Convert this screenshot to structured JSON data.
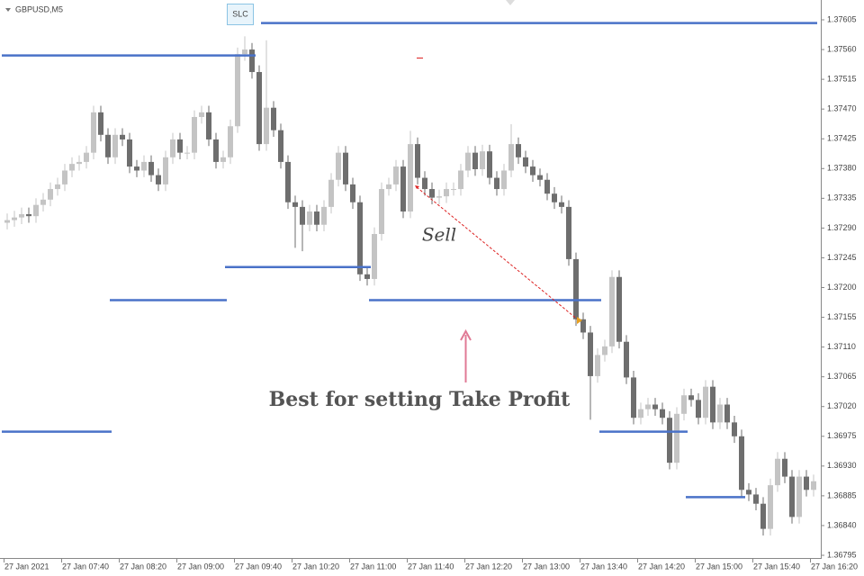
{
  "chart_data": {
    "type": "candlestick",
    "symbol": "GBPUSD,M5",
    "button": "SLC",
    "sell_label": "Sell",
    "note": "Best for setting Take Profit",
    "bull_color": "#c4c4c4",
    "bear_color": "#6e6e6e",
    "level_color": "#4a72c8",
    "categories": [
      "27 Jan 2021",
      null,
      null,
      null,
      null,
      null,
      null,
      null,
      "27 Jan 07:40",
      null,
      null,
      null,
      null,
      null,
      null,
      null,
      "27 Jan 08:20",
      null,
      null,
      null,
      null,
      null,
      null,
      null,
      "27 Jan 09:00",
      null,
      null,
      null,
      null,
      null,
      null,
      null,
      "27 Jan 09:40",
      null,
      null,
      null,
      null,
      null,
      null,
      null,
      "27 Jan 10:20",
      null,
      null,
      null,
      null,
      null,
      null,
      null,
      "27 Jan 11:00",
      null,
      null,
      null,
      null,
      null,
      null,
      null,
      "27 Jan 11:40",
      null,
      null,
      null,
      null,
      null,
      null,
      null,
      "27 Jan 12:20",
      null,
      null,
      null,
      null,
      null,
      null,
      null,
      "27 Jan 13:00",
      null,
      null,
      null,
      null,
      null,
      null,
      null,
      "27 Jan 13:40",
      null,
      null,
      null,
      null,
      null,
      null,
      null,
      "27 Jan 14:20",
      null,
      null,
      null,
      null,
      null,
      null,
      null,
      "27 Jan 15:00",
      null,
      null,
      null,
      null,
      null,
      null,
      null,
      "27 Jan 15:40",
      null,
      null,
      null,
      null,
      null,
      null,
      null,
      "27 Jan 16:20"
    ],
    "open": [
      1.37298,
      1.37302,
      1.37306,
      1.37311,
      1.37308,
      1.37325,
      1.37333,
      1.37349,
      1.37356,
      1.37377,
      1.37387,
      1.3739,
      1.37404,
      1.37465,
      1.37431,
      1.37397,
      1.37431,
      1.37424,
      1.37383,
      1.37377,
      1.3739,
      1.3737,
      1.37356,
      1.37397,
      1.37424,
      1.37404,
      1.37404,
      1.37458,
      1.37465,
      1.37424,
      1.3739,
      1.37397,
      1.37444,
      1.37553,
      1.3756,
      1.37526,
      1.37417,
      1.37472,
      1.37438,
      1.3739,
      1.37329,
      1.37322,
      1.37295,
      1.37315,
      1.37295,
      1.37322,
      1.37363,
      1.37404,
      1.37356,
      1.37329,
      1.3722,
      1.37213,
      1.37281,
      1.37349,
      1.37356,
      1.37383,
      1.37315,
      1.37417,
      1.37366,
      1.37349,
      1.37336,
      1.37338,
      1.37349,
      1.37349,
      1.37377,
      1.37404,
      1.37379,
      1.37406,
      1.37366,
      1.37349,
      1.37377,
      1.37417,
      1.37397,
      1.37383,
      1.3737,
      1.37363,
      1.37342,
      1.37329,
      1.37322,
      1.37243,
      1.37152,
      1.37132,
      1.37066,
      1.37098,
      1.37111,
      1.37216,
      1.37118,
      1.37064,
      1.37003,
      1.37016,
      1.37023,
      1.37016,
      1.37003,
      1.36935,
      1.37009,
      1.37037,
      1.3703,
      1.37003,
      1.3705,
      1.36996,
      1.37023,
      1.36996,
      1.36975,
      1.36894,
      1.36887,
      1.36873,
      1.36835,
      1.36901,
      1.36941,
      1.36914,
      1.36853,
      1.36914,
      1.36894
    ],
    "high": [
      1.37312,
      1.37316,
      1.37321,
      1.37321,
      1.37335,
      1.37343,
      1.37359,
      1.37366,
      1.37387,
      1.37397,
      1.374,
      1.37414,
      1.37475,
      1.37475,
      1.37441,
      1.37441,
      1.37441,
      1.37434,
      1.37393,
      1.374,
      1.374,
      1.3738,
      1.37407,
      1.37434,
      1.37434,
      1.37414,
      1.37468,
      1.37475,
      1.37475,
      1.37434,
      1.37407,
      1.37454,
      1.37563,
      1.3758,
      1.3757,
      1.37536,
      1.37574,
      1.37482,
      1.37448,
      1.374,
      1.37339,
      1.37332,
      1.37325,
      1.37325,
      1.37332,
      1.37373,
      1.37414,
      1.37414,
      1.37366,
      1.37339,
      1.3723,
      1.37291,
      1.37359,
      1.37366,
      1.37393,
      1.37393,
      1.37437,
      1.37427,
      1.37376,
      1.37359,
      1.37348,
      1.37359,
      1.37359,
      1.37387,
      1.37414,
      1.37414,
      1.37416,
      1.37416,
      1.37376,
      1.37387,
      1.37447,
      1.37427,
      1.37407,
      1.37393,
      1.3738,
      1.37373,
      1.37352,
      1.37339,
      1.37332,
      1.37253,
      1.37162,
      1.37142,
      1.37108,
      1.37121,
      1.37226,
      1.37226,
      1.37128,
      1.37074,
      1.37026,
      1.37033,
      1.37033,
      1.37026,
      1.37013,
      1.37019,
      1.37047,
      1.37047,
      1.3704,
      1.3706,
      1.3706,
      1.37033,
      1.37033,
      1.37006,
      1.36985,
      1.36904,
      1.36897,
      1.36883,
      1.36911,
      1.36951,
      1.36951,
      1.36924,
      1.36924,
      1.36924,
      1.36917
    ],
    "low": [
      1.37288,
      1.37292,
      1.37296,
      1.37298,
      1.37298,
      1.37315,
      1.37323,
      1.37339,
      1.37346,
      1.37367,
      1.37377,
      1.3738,
      1.37394,
      1.37421,
      1.37387,
      1.37387,
      1.37414,
      1.37373,
      1.37367,
      1.37367,
      1.3736,
      1.37346,
      1.37346,
      1.37387,
      1.37394,
      1.37394,
      1.37394,
      1.37448,
      1.37414,
      1.3738,
      1.3738,
      1.37387,
      1.37434,
      1.37543,
      1.37516,
      1.37407,
      1.37407,
      1.37428,
      1.3738,
      1.37319,
      1.3726,
      1.37255,
      1.37285,
      1.37285,
      1.37285,
      1.37312,
      1.37353,
      1.37346,
      1.37319,
      1.3721,
      1.37203,
      1.37203,
      1.37271,
      1.37339,
      1.37346,
      1.37305,
      1.37305,
      1.37356,
      1.37339,
      1.37326,
      1.37326,
      1.37328,
      1.37339,
      1.37339,
      1.37367,
      1.37369,
      1.37369,
      1.37356,
      1.37339,
      1.37339,
      1.37367,
      1.37387,
      1.37373,
      1.3736,
      1.37353,
      1.37332,
      1.37319,
      1.37312,
      1.37233,
      1.37142,
      1.37122,
      1.37,
      1.37056,
      1.37088,
      1.37101,
      1.37108,
      1.37054,
      1.36993,
      1.36993,
      1.37006,
      1.37006,
      1.36993,
      1.36925,
      1.36925,
      1.36999,
      1.3702,
      1.36993,
      1.36993,
      1.36986,
      1.36986,
      1.36986,
      1.36965,
      1.36884,
      1.36877,
      1.36863,
      1.36825,
      1.36825,
      1.36891,
      1.36904,
      1.36843,
      1.36843,
      1.36884,
      1.36884
    ],
    "close": [
      1.37302,
      1.37306,
      1.37311,
      1.37308,
      1.37325,
      1.37333,
      1.37349,
      1.37356,
      1.37377,
      1.37387,
      1.3739,
      1.37404,
      1.37465,
      1.37431,
      1.37397,
      1.37431,
      1.37424,
      1.37383,
      1.37377,
      1.3739,
      1.3737,
      1.37356,
      1.37397,
      1.37424,
      1.37404,
      1.37404,
      1.37458,
      1.37465,
      1.37424,
      1.3739,
      1.37397,
      1.37444,
      1.37553,
      1.3756,
      1.37526,
      1.37417,
      1.37472,
      1.37438,
      1.3739,
      1.37329,
      1.37322,
      1.37295,
      1.37315,
      1.37295,
      1.37322,
      1.37363,
      1.37404,
      1.37356,
      1.37329,
      1.3722,
      1.37213,
      1.37281,
      1.37349,
      1.37356,
      1.37383,
      1.37315,
      1.37417,
      1.37366,
      1.37349,
      1.37336,
      1.37338,
      1.37349,
      1.37349,
      1.37377,
      1.37404,
      1.37379,
      1.37406,
      1.37366,
      1.37349,
      1.37377,
      1.37417,
      1.37397,
      1.37383,
      1.3737,
      1.37363,
      1.37342,
      1.37329,
      1.37322,
      1.37243,
      1.37152,
      1.37132,
      1.37066,
      1.37098,
      1.37111,
      1.37216,
      1.37118,
      1.37064,
      1.37003,
      1.37016,
      1.37023,
      1.37016,
      1.37003,
      1.36935,
      1.37009,
      1.37037,
      1.3703,
      1.37003,
      1.3705,
      1.36996,
      1.37023,
      1.36996,
      1.36975,
      1.36894,
      1.36887,
      1.36873,
      1.36835,
      1.36901,
      1.36941,
      1.36914,
      1.36853,
      1.36914,
      1.36894,
      1.36907
    ],
    "levels": [
      {
        "price": 1.376,
        "start": 36,
        "end": 112
      },
      {
        "price": 1.37551,
        "start": 0,
        "end": 34
      },
      {
        "price": 1.37231,
        "start": 31,
        "end": 50
      },
      {
        "price": 1.37181,
        "start": 15,
        "end": 30
      },
      {
        "price": 1.37181,
        "start": 51,
        "end": 82
      },
      {
        "price": 1.36982,
        "start": 0,
        "end": 14
      },
      {
        "price": 1.36982,
        "start": 83,
        "end": 94
      },
      {
        "price": 1.36883,
        "start": 95,
        "end": 102
      }
    ],
    "ylim": [
      1.36795,
      1.37605
    ],
    "yticks": [
      1.37605,
      {
        "value": 1.3756,
        "label": "1.37560"
      },
      1.37515,
      {
        "value": 1.3747,
        "label": "1.37470"
      },
      1.37425,
      {
        "value": 1.3738,
        "label": "1.37380"
      },
      1.37335,
      {
        "value": 1.3729,
        "label": "1.37290"
      },
      1.37245,
      {
        "value": 1.372,
        "label": "1.37200"
      },
      1.37155,
      {
        "value": 1.3711,
        "label": "1.37110"
      },
      1.37065,
      {
        "value": 1.3702,
        "label": "1.37020"
      },
      1.36975,
      {
        "value": 1.3693,
        "label": "1.36930"
      },
      1.36885,
      {
        "value": 1.3684,
        "label": "1.36840"
      },
      1.36795
    ]
  }
}
